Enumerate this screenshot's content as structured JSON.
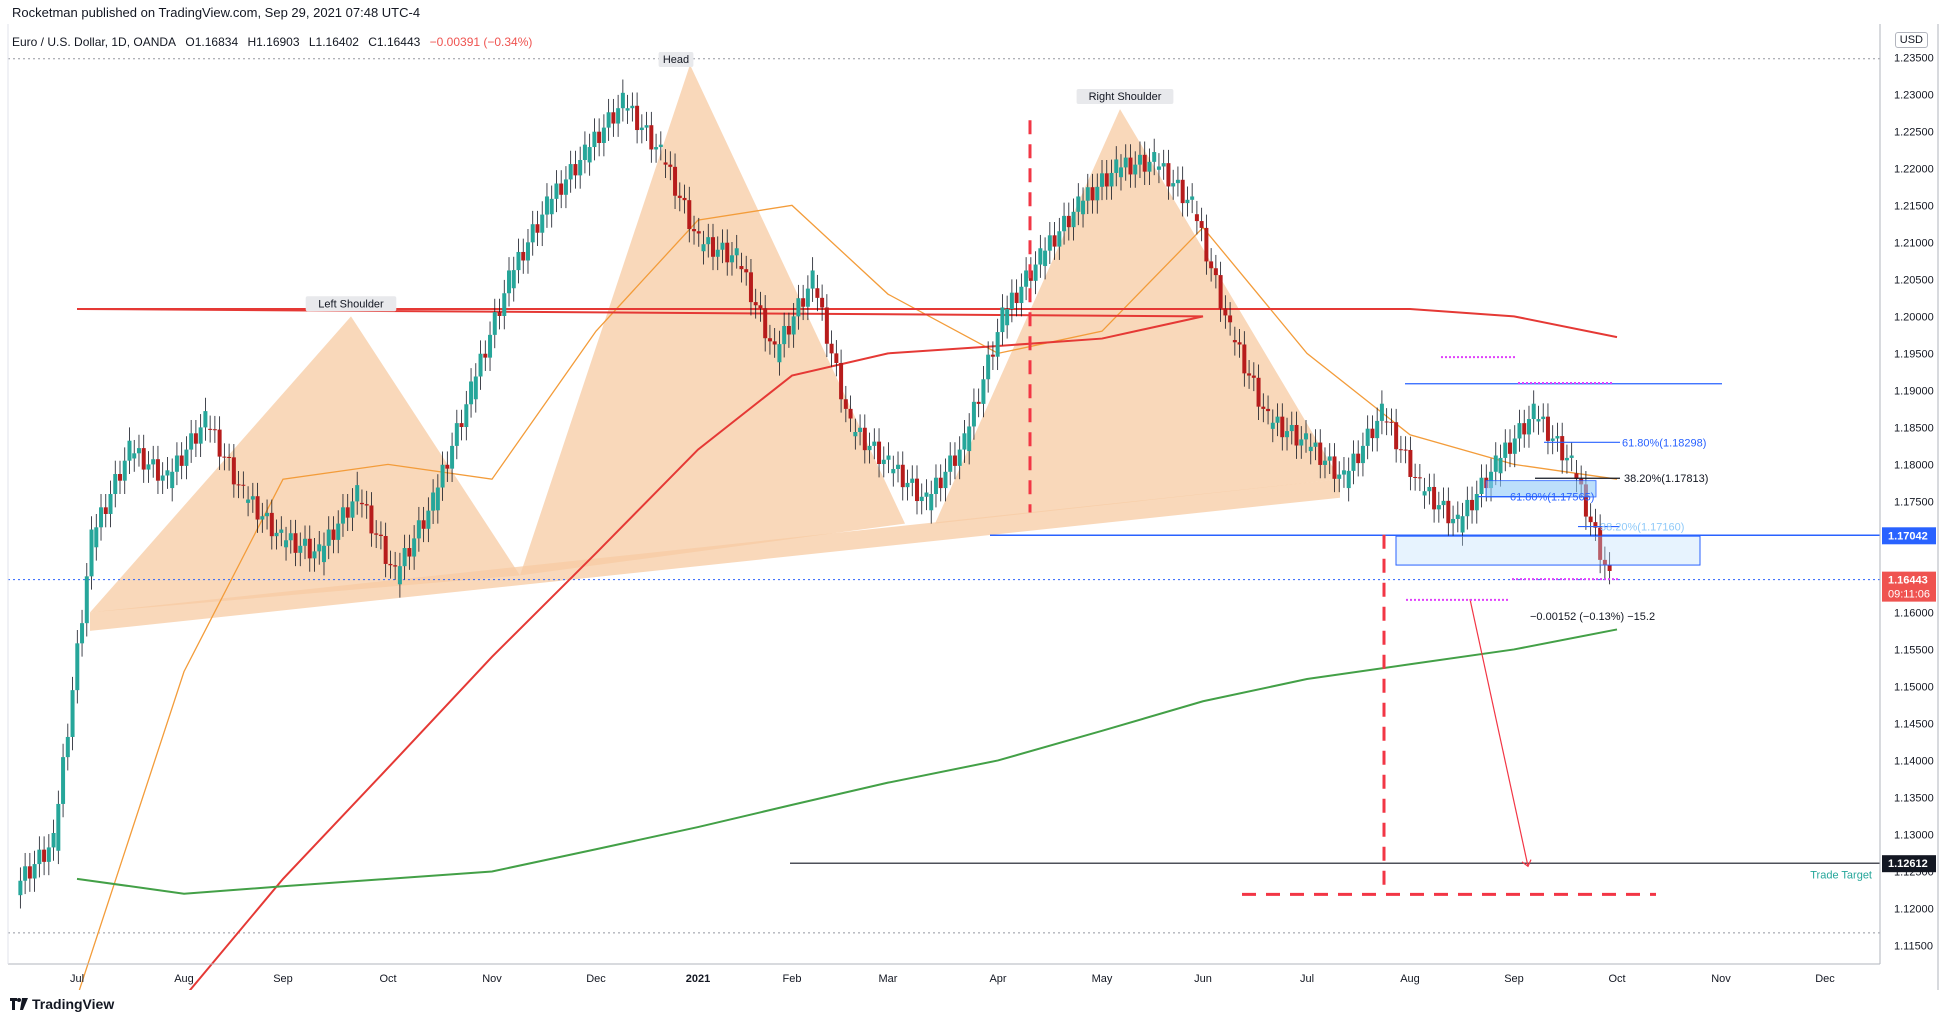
{
  "header": {
    "published": "Rocketman published on TradingView.com, Sep 29, 2021 07:48 UTC-4"
  },
  "legend": {
    "symbol": "Euro / U.S. Dollar, 1D, OANDA",
    "open": "O1.16834",
    "high": "H1.16903",
    "low": "L1.16402",
    "close": "C1.16443",
    "change": "−0.00391 (−0.34%)"
  },
  "currency_button": "USD",
  "footer": {
    "brand": "TradingView",
    "logo": "tradingview-logo-icon"
  },
  "colors": {
    "up": "#26a69a",
    "down": "#ef5350",
    "ma_short": "#f39c3a",
    "ma_mid": "#e53935",
    "ma_long": "#43a047",
    "pattern_fill": "#f7cba3",
    "fib": "#2962ff",
    "marker": "#e040fb"
  },
  "chart_data": {
    "type": "candlestick",
    "title": "",
    "x_axis": {
      "labels": [
        "Jul",
        "Aug",
        "Sep",
        "Oct",
        "Nov",
        "Dec",
        "2021",
        "Feb",
        "Mar",
        "Apr",
        "May",
        "Jun",
        "Jul",
        "Aug",
        "Sep",
        "Oct",
        "Nov",
        "Dec"
      ]
    },
    "y_axis": {
      "ticks": [
        "1.23500",
        "1.23000",
        "1.22500",
        "1.22000",
        "1.21500",
        "1.21000",
        "1.20500",
        "1.20000",
        "1.19500",
        "1.19000",
        "1.18500",
        "1.18000",
        "1.17500",
        "1.17000",
        "1.16500",
        "1.16000",
        "1.15500",
        "1.15000",
        "1.14500",
        "1.14000",
        "1.13500",
        "1.13000",
        "1.12500",
        "1.12000",
        "1.11500"
      ],
      "range": [
        1.1125,
        1.2395
      ]
    },
    "price_labels": [
      {
        "value": "1.17042",
        "role": "neckline"
      },
      {
        "value": "1.16443",
        "role": "last-price"
      },
      {
        "value": "09:11:06",
        "role": "countdown"
      },
      {
        "value": "1.12612",
        "role": "target"
      }
    ],
    "annotations": {
      "pattern_labels": [
        "Left Shoulder",
        "Head",
        "Right Shoulder"
      ],
      "trade_target": "Trade Target",
      "fib_levels": [
        "61.80%(1.18298)",
        "38.20%(1.17813)",
        "61.80%(1.17565)",
        "38.20%(1.17160)"
      ],
      "measure": "−0.00152 (−0.13%) −15.2"
    },
    "levels": {
      "neckline": 1.17042,
      "last_price": 1.16443,
      "target": 1.12612,
      "top_dotted": 1.2348,
      "bottom_dotted": 1.1167,
      "resistance": 1.1909
    },
    "moving_averages": [
      {
        "color": "orange",
        "points": [
          [
            "Jul",
            1.108
          ],
          [
            "Aug",
            1.152
          ],
          [
            "Sep",
            1.178
          ],
          [
            "Oct",
            1.18
          ],
          [
            "Nov",
            1.178
          ],
          [
            "Dec",
            1.198
          ],
          [
            "2021",
            1.213
          ],
          [
            "Feb",
            1.215
          ],
          [
            "Mar",
            1.203
          ],
          [
            "Apr",
            1.195
          ],
          [
            "May",
            1.198
          ],
          [
            "Jun",
            1.212
          ],
          [
            "Jul",
            1.195
          ],
          [
            "Aug",
            1.184
          ],
          [
            "Sep",
            1.18
          ],
          [
            "Oct",
            1.178
          ]
        ]
      },
      {
        "color": "red",
        "points": [
          [
            "Aug",
            1.108
          ],
          [
            "Sep",
            1.124
          ],
          [
            "Oct",
            1.139
          ],
          [
            "Nov",
            1.154
          ],
          [
            "Dec",
            1.168
          ],
          [
            "2021",
            1.182
          ],
          [
            "Feb",
            1.192
          ],
          [
            "Mar",
            1.195
          ],
          [
            "Apr",
            1.196
          ],
          [
            "May",
            1.197
          ],
          [
            "Jun",
            1.2
          ],
          [
            "Jul",
            1.201
          ],
          [
            "Aug",
            1.201
          ],
          [
            "Sep",
            1.2
          ],
          [
            "Oct",
            1.1972
          ]
        ]
      },
      {
        "color": "green",
        "points": [
          [
            "Jul",
            1.124
          ],
          [
            "Aug",
            1.122
          ],
          [
            "Sep",
            1.123
          ],
          [
            "Oct",
            1.124
          ],
          [
            "Nov",
            1.125
          ],
          [
            "Dec",
            1.128
          ],
          [
            "2021",
            1.131
          ],
          [
            "Feb",
            1.134
          ],
          [
            "Mar",
            1.137
          ],
          [
            "Apr",
            1.14
          ],
          [
            "May",
            1.144
          ],
          [
            "Jun",
            1.148
          ],
          [
            "Jul",
            1.151
          ],
          [
            "Aug",
            1.153
          ],
          [
            "Sep",
            1.155
          ],
          [
            "Oct",
            1.1577
          ]
        ]
      }
    ],
    "closes": [
      [
        "Jul",
        1.123
      ],
      [
        "Jul",
        1.129
      ],
      [
        "Aug",
        1.17
      ],
      [
        "Aug",
        1.182
      ],
      [
        "Sep",
        1.178
      ],
      [
        "Sep",
        1.186
      ],
      [
        "Sep",
        1.176
      ],
      [
        "Oct",
        1.17
      ],
      [
        "Oct",
        1.168
      ],
      [
        "Oct",
        1.176
      ],
      [
        "Nov",
        1.165
      ],
      [
        "Nov",
        1.175
      ],
      [
        "Nov",
        1.19
      ],
      [
        "Dec",
        1.205
      ],
      [
        "Dec",
        1.215
      ],
      [
        "Dec",
        1.222
      ],
      [
        "2021",
        1.229
      ],
      [
        "2021",
        1.222
      ],
      [
        "Feb",
        1.21
      ],
      [
        "Feb",
        1.208
      ],
      [
        "Feb",
        1.195
      ],
      [
        "Mar",
        1.205
      ],
      [
        "Mar",
        1.185
      ],
      [
        "Mar",
        1.18
      ],
      [
        "Apr",
        1.175
      ],
      [
        "Apr",
        1.183
      ],
      [
        "Apr",
        1.2
      ],
      [
        "May",
        1.208
      ],
      [
        "May",
        1.215
      ],
      [
        "May",
        1.22
      ],
      [
        "Jun",
        1.221
      ],
      [
        "Jun",
        1.215
      ],
      [
        "Jun",
        1.198
      ],
      [
        "Jul",
        1.186
      ],
      [
        "Jul",
        1.183
      ],
      [
        "Jul",
        1.178
      ],
      [
        "Aug",
        1.187
      ],
      [
        "Aug",
        1.177
      ],
      [
        "Aug",
        1.172
      ],
      [
        "Sep",
        1.18
      ],
      [
        "Sep",
        1.187
      ],
      [
        "Sep",
        1.18
      ],
      [
        "Oct",
        1.1644
      ]
    ]
  }
}
